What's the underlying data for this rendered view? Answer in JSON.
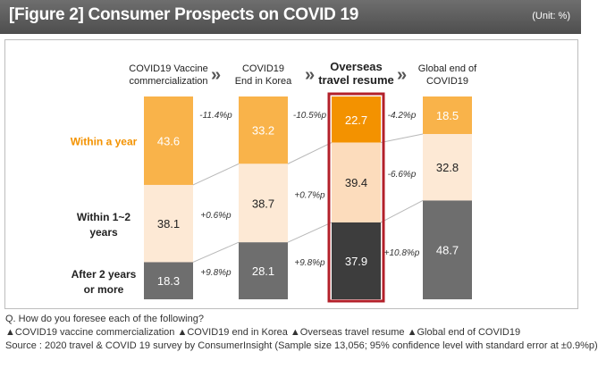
{
  "header": {
    "title": "[Figure 2] Consumer Prospects on COVID 19",
    "unit": "(Unit: %)"
  },
  "chart_data": {
    "type": "bar",
    "stacked": true,
    "categories": [
      [
        "COVID19 Vaccine",
        "commercialization"
      ],
      [
        "COVID19",
        "End in Korea"
      ],
      [
        "Overseas",
        "travel resume"
      ],
      [
        "Global end of",
        "COVID19"
      ]
    ],
    "highlight_index": 2,
    "arrow_glyph": "»",
    "series": [
      {
        "name": [
          "Within a year"
        ],
        "values": [
          43.6,
          33.2,
          22.7,
          18.5
        ],
        "colors": [
          "#f9b34a",
          "#f9b34a",
          "#f39200",
          "#f9b34a"
        ],
        "label_color": "#f39200",
        "text_color": "#ffffff"
      },
      {
        "name": [
          "Within 1~2",
          "years"
        ],
        "values": [
          38.1,
          38.7,
          39.4,
          32.8
        ],
        "colors": [
          "#fde9d5",
          "#fde9d5",
          "#fcdcbc",
          "#fde9d5"
        ],
        "label_color": "#222222",
        "text_color": "#222222"
      },
      {
        "name": [
          "After 2 years",
          "or more"
        ],
        "values": [
          18.3,
          28.1,
          37.9,
          48.7
        ],
        "colors": [
          "#6e6e6e",
          "#6e6e6e",
          "#3d3d3d",
          "#6e6e6e"
        ],
        "label_color": "#222222",
        "text_color": "#ffffff"
      }
    ],
    "changes": [
      [
        "-11.4%p",
        "+0.6%p",
        "+9.8%p"
      ],
      [
        "-10.5%p",
        "+0.7%p",
        "+9.8%p"
      ],
      [
        "-4.2%p",
        "-6.6%p",
        "+10.8%p"
      ]
    ],
    "highlight_border_color": "#b3202a"
  },
  "notes": {
    "question": "Q. How do you foresee each of the following?",
    "items": "▲COVID19 vaccine commercialization ▲COVID19 end in Korea ▲Overseas travel resume ▲Global end of COVID19",
    "source": "Source : 2020 travel & COVID 19 survey by ConsumerInsight (Sample size 13,056; 95% confidence level with standard error at ±0.9%p)"
  }
}
